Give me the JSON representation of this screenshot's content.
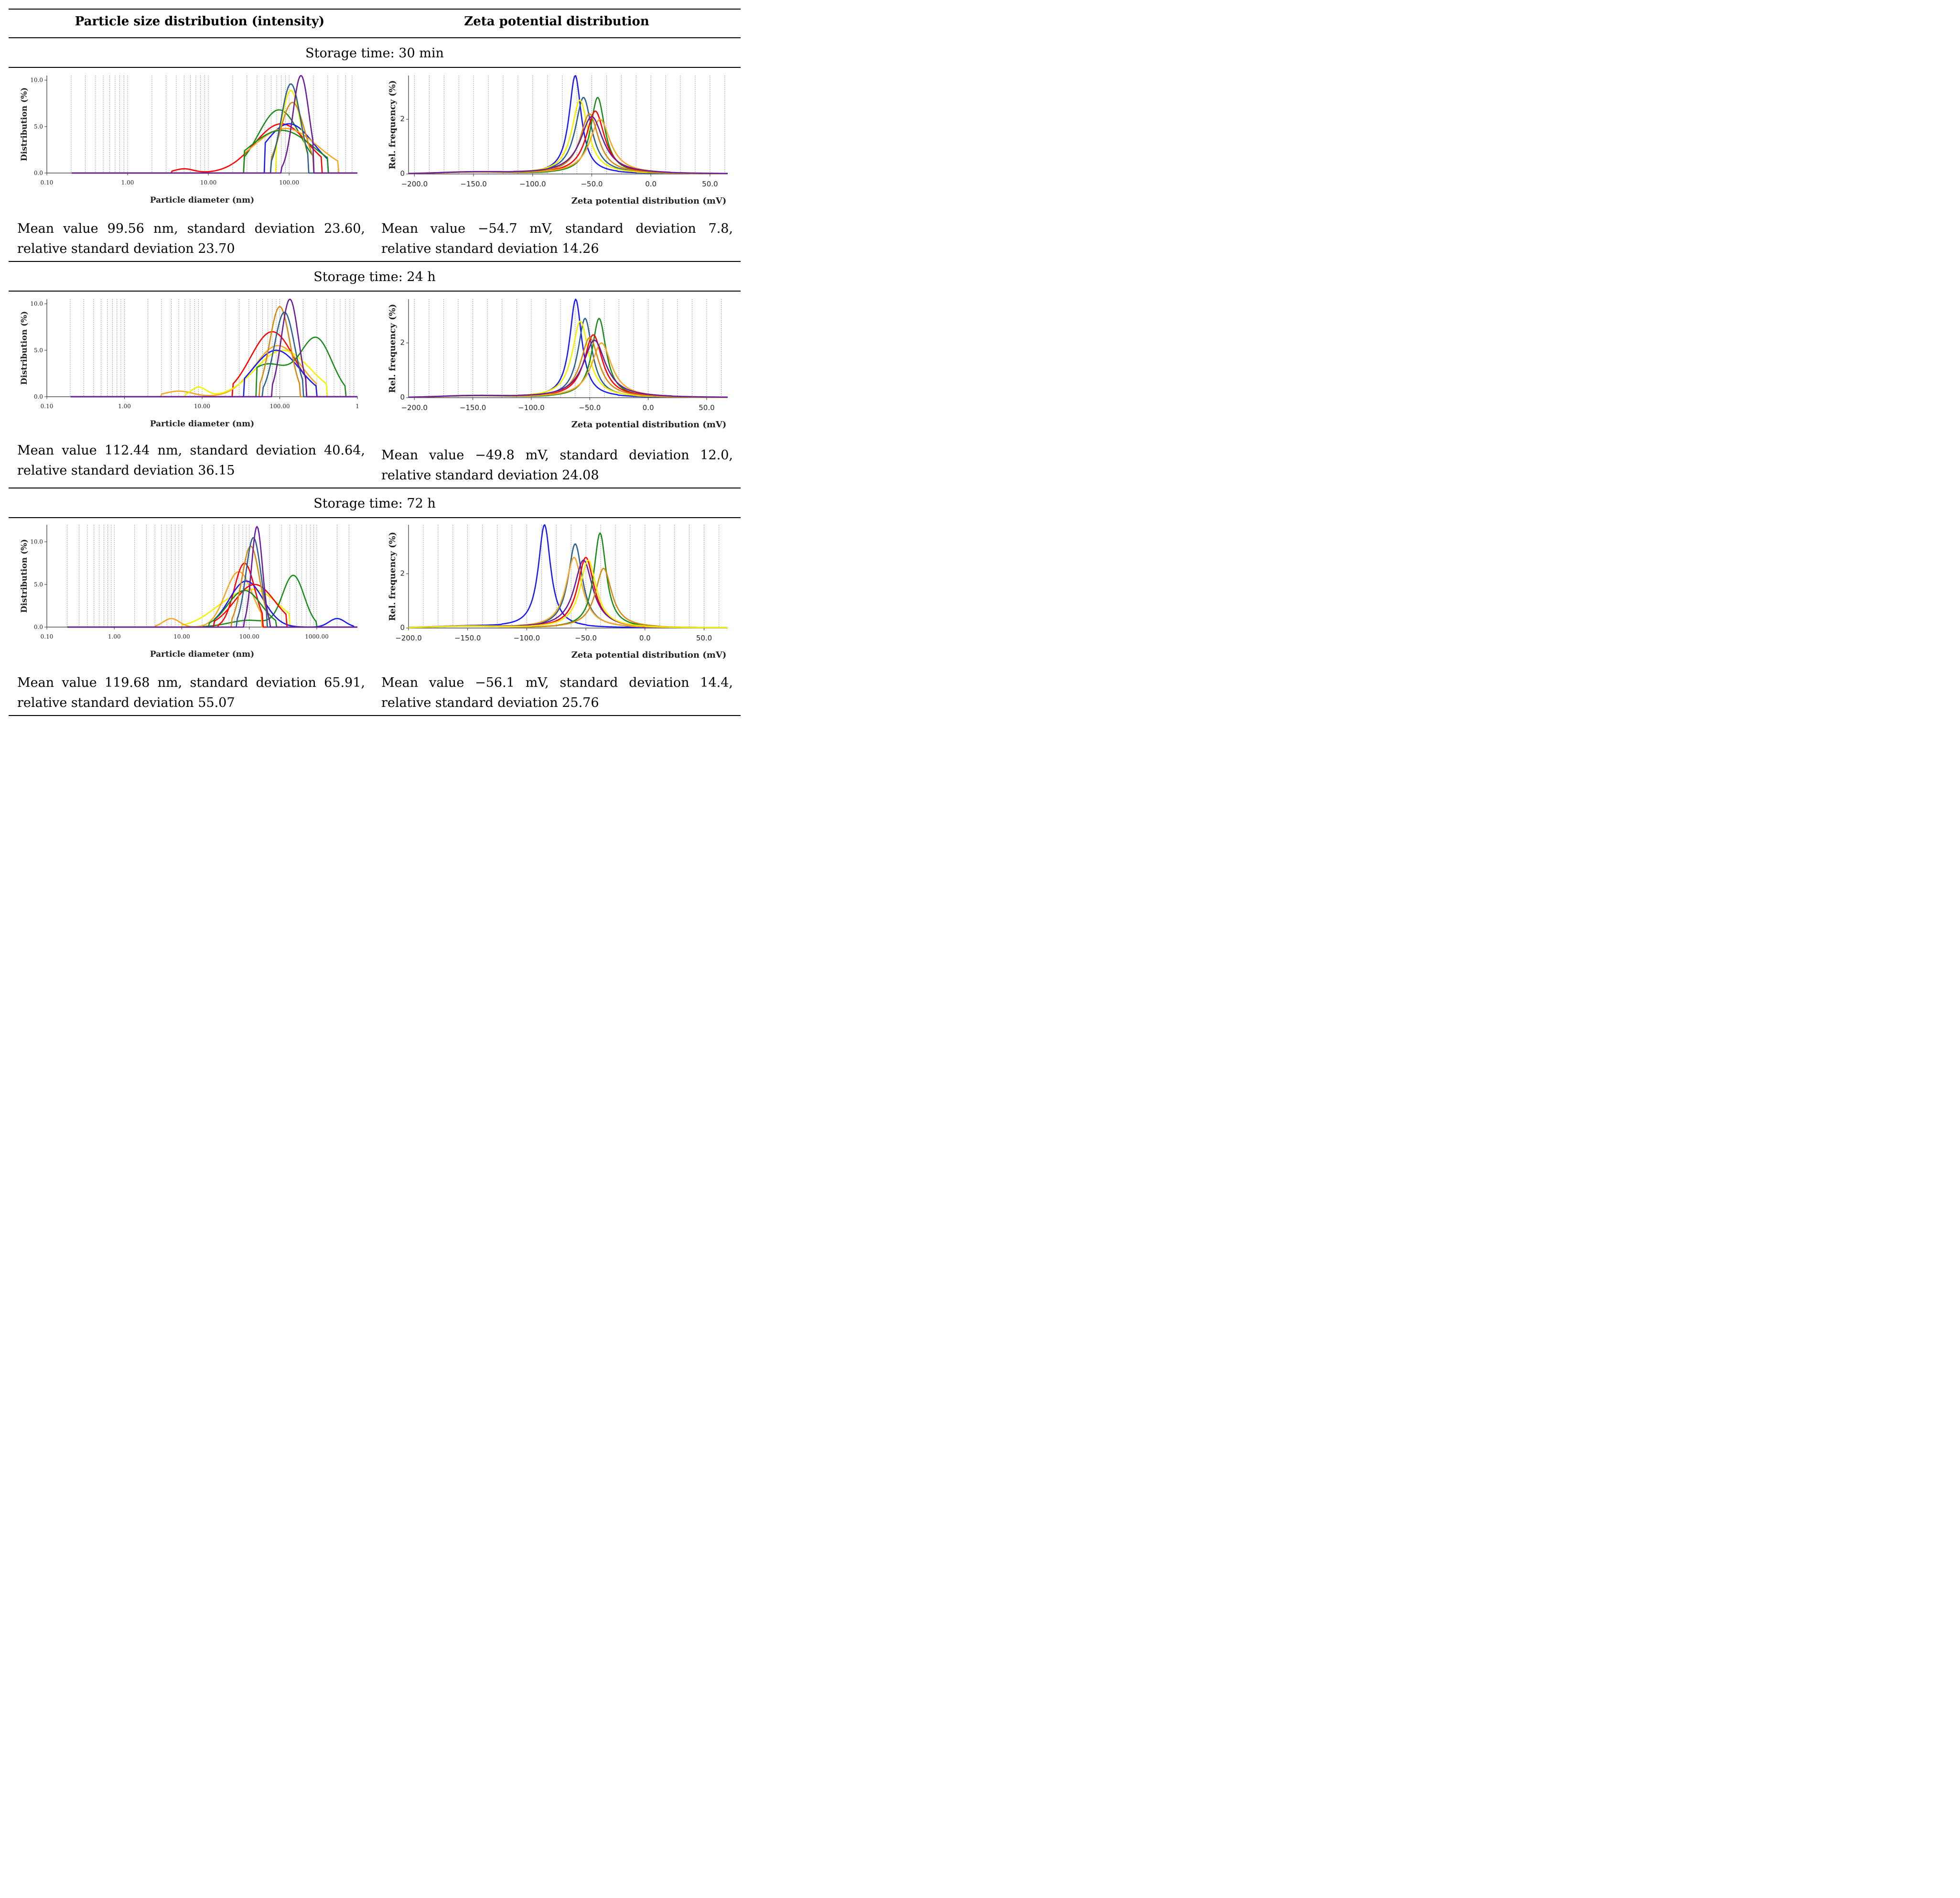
{
  "header": {
    "left": "Particle size distribution (intensity)",
    "right": "Zeta potential distribution"
  },
  "sections": [
    {
      "title": "Storage time: 30 min",
      "left_stats": "Mean value 99.56 nm, standard deviation 23.60, relative standard deviation 23.70",
      "right_stats": "Mean value −54.7 mV, standard deviation 7.8, relative standard deviation 14.26"
    },
    {
      "title": "Storage time: 24 h",
      "left_stats": "Mean value 112.44 nm, standard deviation 40.64, relative standard deviation 36.15",
      "right_stats": "Mean value −49.8 mV, standard deviation 12.0, relative standard deviation 24.08"
    },
    {
      "title": "Storage time: 72 h",
      "left_stats": "Mean value 119.68 nm, standard deviation 65.91, relative standard deviation 55.07",
      "right_stats": "Mean value −56.1 mV, standard deviation 14.4, relative standard deviation 25.76"
    }
  ],
  "colors": {
    "red": "#ff0000",
    "blue": "#1a1aee",
    "green": "#1a8a1a",
    "yellow": "#f2f200",
    "orange": "#f5a623",
    "darkorange": "#d4880f",
    "purple": "#6a1b9a",
    "steel": "#2a5f8f"
  },
  "chart_data": [
    {
      "id": "ps_30min",
      "type": "line",
      "scale": "log",
      "xlabel": "Particle diameter (nm)",
      "ylabel": "Distribution (%)",
      "xticks": [
        "0.10",
        "1.00",
        "10.00",
        "100.00"
      ],
      "yticks": [
        "0.0",
        "5.0",
        "10.0"
      ],
      "xlim": [
        0.1,
        700
      ],
      "ylim": [
        0,
        10.5
      ],
      "series": [
        {
          "color": "green",
          "peaks": [
            [
              75,
              6.8,
              0.26
            ]
          ],
          "range": [
            28,
            200
          ]
        },
        {
          "color": "red",
          "peaks": [
            [
              80,
              5.3,
              0.33
            ],
            [
              5,
              0.45,
              0.12
            ]
          ],
          "range": [
            3.5,
            250
          ]
        },
        {
          "color": "blue",
          "peaks": [
            [
              100,
              5.3,
              0.3
            ]
          ],
          "range": [
            50,
            300
          ]
        },
        {
          "color": "orange",
          "peaks": [
            [
              90,
              4.8,
              0.4
            ]
          ],
          "range": [
            28,
            400
          ]
        },
        {
          "color": "green",
          "peaks": [
            [
              80,
              4.6,
              0.4
            ]
          ],
          "range": [
            28,
            300
          ]
        },
        {
          "color": "yellow",
          "peaks": [
            [
              105,
              8.9,
              0.12
            ]
          ],
          "range": [
            70,
            170
          ]
        },
        {
          "color": "darkorange",
          "peaks": [
            [
              110,
              7.6,
              0.15
            ]
          ],
          "range": [
            60,
            200
          ]
        },
        {
          "color": "steel",
          "peaks": [
            [
              105,
              9.6,
              0.12
            ]
          ],
          "range": [
            60,
            170
          ]
        },
        {
          "color": "purple",
          "peaks": [
            [
              140,
              10.5,
              0.1
            ]
          ],
          "range": [
            80,
            200
          ]
        }
      ]
    },
    {
      "id": "zeta_30min",
      "type": "line",
      "xlabel": "Zeta potential distribution (mV)",
      "ylabel": "Rel. frequency (%)",
      "xticks": [
        -200,
        -150,
        -100,
        -50,
        0,
        50
      ],
      "yticks": [
        0,
        2
      ],
      "xlim": [
        -205,
        65
      ],
      "ylim": [
        0,
        3.6
      ],
      "series": [
        {
          "color": "blue",
          "peak": [
            -64,
            3.6,
            6
          ]
        },
        {
          "color": "steel",
          "peak": [
            -57,
            2.8,
            8
          ]
        },
        {
          "color": "yellow",
          "peak": [
            -60,
            2.7,
            8
          ]
        },
        {
          "color": "green",
          "peak": [
            -45,
            2.8,
            7
          ]
        },
        {
          "color": "red",
          "peak": [
            -47,
            2.3,
            9
          ]
        },
        {
          "color": "orange",
          "peak": [
            -43,
            2.0,
            10
          ]
        },
        {
          "color": "darkorange",
          "peak": [
            -52,
            2.2,
            9
          ]
        },
        {
          "color": "purple",
          "peak": [
            -50,
            2.1,
            11
          ]
        }
      ]
    },
    {
      "id": "ps_24h",
      "type": "line",
      "scale": "log",
      "xlabel": "Particle diameter (nm)",
      "ylabel": "Distribution (%)",
      "xticks": [
        "0.10",
        "1.00",
        "10.00",
        "100.00",
        "1"
      ],
      "yticks": [
        "0.0",
        "5.0",
        "10.0"
      ],
      "xlim": [
        0.1,
        1000
      ],
      "ylim": [
        0,
        10.5
      ],
      "series": [
        {
          "color": "red",
          "peaks": [
            [
              80,
              7.0,
              0.28
            ]
          ],
          "range": [
            25,
            220
          ]
        },
        {
          "color": "orange",
          "peaks": [
            [
              95,
              5.5,
              0.3
            ],
            [
              5,
              0.6,
              0.18
            ]
          ],
          "range": [
            3,
            300
          ]
        },
        {
          "color": "yellow",
          "peaks": [
            [
              110,
              5.0,
              0.35
            ],
            [
              9,
              1.0,
              0.1
            ]
          ],
          "range": [
            6,
            400
          ]
        },
        {
          "color": "green",
          "peaks": [
            [
              300,
              6.0,
              0.2
            ],
            [
              70,
              3.5,
              0.3
            ]
          ],
          "range": [
            50,
            700
          ]
        },
        {
          "color": "blue",
          "peaks": [
            [
              90,
              5.0,
              0.3
            ]
          ],
          "range": [
            35,
            300
          ]
        },
        {
          "color": "darkorange",
          "peaks": [
            [
              100,
              9.7,
              0.13
            ]
          ],
          "range": [
            55,
            180
          ]
        },
        {
          "color": "steel",
          "peaks": [
            [
              115,
              9.1,
              0.13
            ]
          ],
          "range": [
            60,
            200
          ]
        },
        {
          "color": "purple",
          "peaks": [
            [
              135,
              10.5,
              0.11
            ]
          ],
          "range": [
            80,
            220
          ]
        }
      ]
    },
    {
      "id": "zeta_24h",
      "type": "line",
      "xlabel": "Zeta potential distribution (mV)",
      "ylabel": "Rel. frequency (%)",
      "xticks": [
        -200,
        -150,
        -100,
        -50,
        0,
        50
      ],
      "yticks": [
        0,
        2
      ],
      "xlim": [
        -205,
        68
      ],
      "ylim": [
        0,
        3.6
      ],
      "series": [
        {
          "color": "blue",
          "peak": [
            -62,
            3.6,
            6
          ]
        },
        {
          "color": "steel",
          "peak": [
            -54,
            2.9,
            7
          ]
        },
        {
          "color": "yellow",
          "peak": [
            -58,
            2.8,
            8
          ]
        },
        {
          "color": "green",
          "peak": [
            -42,
            2.9,
            7
          ]
        },
        {
          "color": "red",
          "peak": [
            -47,
            2.3,
            9
          ]
        },
        {
          "color": "orange",
          "peak": [
            -40,
            2.0,
            10
          ]
        },
        {
          "color": "darkorange",
          "peak": [
            -50,
            2.2,
            9
          ]
        },
        {
          "color": "purple",
          "peak": [
            -46,
            2.1,
            11
          ]
        }
      ]
    },
    {
      "id": "ps_72h",
      "type": "line",
      "scale": "log",
      "xlabel": "Particle diameter (nm)",
      "ylabel": "Distribution (%)",
      "xticks": [
        "0.10",
        "1.00",
        "10.00",
        "100.00",
        "1000.00"
      ],
      "yticks": [
        "0.0",
        "5.0",
        "10.0"
      ],
      "xlim": [
        0.1,
        4000
      ],
      "ylim": [
        0,
        12
      ],
      "series": [
        {
          "color": "yellow",
          "peaks": [
            [
              130,
              4.0,
              0.35
            ],
            [
              40,
              1.5,
              0.3
            ]
          ],
          "range": [
            10,
            400
          ]
        },
        {
          "color": "green",
          "peaks": [
            [
              450,
              6.0,
              0.16
            ],
            [
              100,
              0.8,
              0.3
            ]
          ],
          "range": [
            20,
            1000
          ]
        },
        {
          "color": "orange",
          "peaks": [
            [
              70,
              6.5,
              0.2
            ],
            [
              7,
              1.0,
              0.12
            ]
          ],
          "range": [
            4,
            150
          ]
        },
        {
          "color": "red",
          "peaks": [
            [
              85,
              7.5,
              0.15
            ]
          ],
          "range": [
            35,
            160
          ]
        },
        {
          "color": "blue",
          "peaks": [
            [
              90,
              5.4,
              0.25
            ],
            [
              2000,
              1.0,
              0.12
            ]
          ],
          "range": [
            30,
            3500
          ]
        },
        {
          "color": "red",
          "peaks": [
            [
              120,
              5.0,
              0.3
            ]
          ],
          "range": [
            30,
            350
          ]
        },
        {
          "color": "green",
          "peaks": [
            [
              85,
              4.3,
              0.25
            ]
          ],
          "range": [
            25,
            250
          ]
        },
        {
          "color": "darkorange",
          "peaks": [
            [
              105,
              9.5,
              0.13
            ]
          ],
          "range": [
            55,
            180
          ]
        },
        {
          "color": "steel",
          "peaks": [
            [
              115,
              10.5,
              0.11
            ]
          ],
          "range": [
            65,
            180
          ]
        },
        {
          "color": "purple",
          "peaks": [
            [
              130,
              11.8,
              0.08
            ]
          ],
          "range": [
            85,
            200
          ]
        }
      ]
    },
    {
      "id": "zeta_72h",
      "type": "line",
      "xlabel": "Zeta potential distribution (mV)",
      "ylabel": "Rel. frequency (%)",
      "xticks": [
        -200,
        -150,
        -100,
        -50,
        0,
        50
      ],
      "yticks": [
        0,
        2
      ],
      "xlim": [
        -200,
        70
      ],
      "ylim": [
        0,
        3.8
      ],
      "series": [
        {
          "color": "blue",
          "peak": [
            -85,
            3.8,
            6
          ]
        },
        {
          "color": "steel",
          "peak": [
            -59,
            3.1,
            7
          ]
        },
        {
          "color": "orange",
          "peak": [
            -60,
            2.6,
            8
          ]
        },
        {
          "color": "red",
          "peak": [
            -50,
            2.6,
            8
          ]
        },
        {
          "color": "purple",
          "peak": [
            -52,
            2.5,
            9
          ]
        },
        {
          "color": "green",
          "peak": [
            -38,
            3.5,
            6
          ]
        },
        {
          "color": "darkorange",
          "peak": [
            -35,
            2.2,
            8
          ]
        },
        {
          "color": "yellow",
          "peak": [
            -48,
            2.5,
            8
          ]
        }
      ]
    }
  ]
}
